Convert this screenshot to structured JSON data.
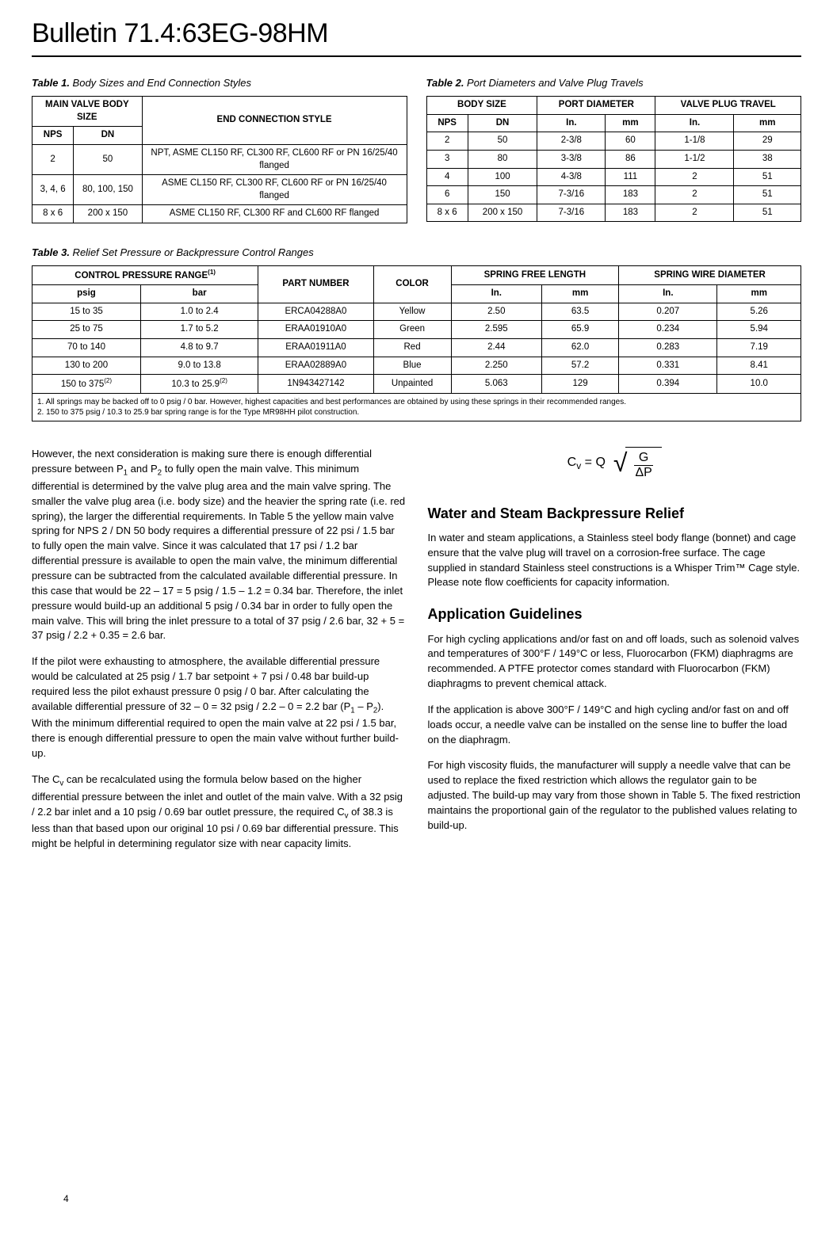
{
  "bulletin_title": "Bulletin 71.4:63EG-98HM",
  "table1": {
    "caption_label": "Table 1.",
    "caption_desc": " Body Sizes and End Connection Styles",
    "header_main": "MAIN VALVE BODY SIZE",
    "header_end": "END CONNECTION STYLE",
    "header_nps": "NPS",
    "header_dn": "DN",
    "rows": [
      {
        "nps": "2",
        "dn": "50",
        "end": "NPT, ASME CL150 RF, CL300 RF, CL600 RF or PN 16/25/40 flanged"
      },
      {
        "nps": "3, 4, 6",
        "dn": "80, 100, 150",
        "end": "ASME CL150 RF, CL300 RF, CL600 RF or PN 16/25/40 flanged"
      },
      {
        "nps": "8 x 6",
        "dn": "200 x 150",
        "end": "ASME CL150 RF, CL300 RF and CL600 RF flanged"
      }
    ]
  },
  "table2": {
    "caption_label": "Table 2.",
    "caption_desc": " Port Diameters and Valve Plug Travels",
    "header_body": "BODY SIZE",
    "header_port": "PORT DIAMETER",
    "header_travel": "VALVE PLUG TRAVEL",
    "header_nps": "NPS",
    "header_dn": "DN",
    "header_in": "In.",
    "header_mm": "mm",
    "rows": [
      {
        "nps": "2",
        "dn": "50",
        "pin": "2-3/8",
        "pmm": "60",
        "tin": "1-1/8",
        "tmm": "29"
      },
      {
        "nps": "3",
        "dn": "80",
        "pin": "3-3/8",
        "pmm": "86",
        "tin": "1-1/2",
        "tmm": "38"
      },
      {
        "nps": "4",
        "dn": "100",
        "pin": "4-3/8",
        "pmm": "111",
        "tin": "2",
        "tmm": "51"
      },
      {
        "nps": "6",
        "dn": "150",
        "pin": "7-3/16",
        "pmm": "183",
        "tin": "2",
        "tmm": "51"
      },
      {
        "nps": "8 x 6",
        "dn": "200 x 150",
        "pin": "7-3/16",
        "pmm": "183",
        "tin": "2",
        "tmm": "51"
      }
    ]
  },
  "table3": {
    "caption_label": "Table 3.",
    "caption_desc": " Relief Set Pressure or Backpressure Control Ranges",
    "header_control": "CONTROL PRESSURE RANGE",
    "header_part": "PART NUMBER",
    "header_color": "COLOR",
    "header_free": "SPRING FREE LENGTH",
    "header_wire": "SPRING WIRE DIAMETER",
    "header_psig": "psig",
    "header_bar": "bar",
    "header_in": "In.",
    "header_mm": "mm",
    "rows": [
      {
        "psig": "15 to 35",
        "bar": "1.0 to 2.4",
        "part": "ERCA04288A0",
        "color": "Yellow",
        "fin": "2.50",
        "fmm": "63.5",
        "win": "0.207",
        "wmm": "5.26"
      },
      {
        "psig": "25 to 75",
        "bar": "1.7 to 5.2",
        "part": "ERAA01910A0",
        "color": "Green",
        "fin": "2.595",
        "fmm": "65.9",
        "win": "0.234",
        "wmm": "5.94"
      },
      {
        "psig": "70 to 140",
        "bar": "4.8 to 9.7",
        "part": "ERAA01911A0",
        "color": "Red",
        "fin": "2.44",
        "fmm": "62.0",
        "win": "0.283",
        "wmm": "7.19"
      },
      {
        "psig": "130 to 200",
        "bar": "9.0 to 13.8",
        "part": "ERAA02889A0",
        "color": "Blue",
        "fin": "2.250",
        "fmm": "57.2",
        "win": "0.331",
        "wmm": "8.41"
      }
    ],
    "last_row": {
      "psig_pre": "150 to 375",
      "bar_pre": "10.3 to 25.9",
      "part": "1N943427142",
      "color": "Unpainted",
      "fin": "5.063",
      "fmm": "129",
      "win": "0.394",
      "wmm": "10.0"
    },
    "footnote1": "1. All springs may be backed off to 0 psig / 0 bar. However, highest capacities and best performances are obtained by using these springs in their recommended ranges.",
    "footnote2": "2. 150 to 375 psig / 10.3 to 25.9 bar spring range is for the Type MR98HH pilot construction."
  },
  "body": {
    "p1a": "However, the next consideration is making sure there is enough differential pressure between P",
    "p1b": " and P",
    "p1c": " to fully open the main valve. This minimum differential is determined by the valve plug area and the main valve spring. The smaller the valve plug area (i.e. body size) and the heavier the spring rate (i.e. red spring), the larger the differential requirements. In Table 5 the yellow main valve spring for NPS 2 / DN 50 body requires a differential pressure of 22 psi / 1.5 bar to fully open the main valve. Since it was calculated that 17 psi / 1.2 bar differential pressure is available to open the main valve, the minimum differential pressure can be subtracted from the calculated available differential pressure. In this case that would be 22 – 17 = 5 psig / 1.5 – 1.2 = 0.34 bar. Therefore, the inlet pressure would build-up an additional 5 psig / 0.34 bar in order to fully open the main valve. This will bring the inlet pressure to a total of 37 psig / 2.6 bar, 32 + 5 = 37 psig / 2.2 + 0.35 = 2.6 bar.",
    "p2a": "If the pilot were exhausting to atmosphere, the available differential pressure would be calculated at 25 psig / 1.7 bar setpoint + 7 psi / 0.48 bar build-up required less the pilot exhaust pressure 0 psig / 0 bar. After calculating the available differential pressure of 32 – 0 = 32 psig / 2.2 – 0 = 2.2 bar (P",
    "p2b": " – P",
    "p2c": "). With the minimum differential required to open the main valve at 22 psi / 1.5 bar, there is enough differential pressure to open the main valve without further build-up.",
    "p3a": "The C",
    "p3b": " can be recalculated using the formula below based on the higher differential pressure between the inlet and outlet of the main valve. With a 32 psig / 2.2 bar inlet and a 10 psig / 0.69 bar outlet pressure, the required C",
    "p3c": " of 38.3 is less than that based upon our original 10 psi / 0.69 bar differential pressure. This might be helpful in determining regulator size with near capacity limits.",
    "formula_lhs_pre": "C",
    "formula_lhs_post": " = Q",
    "formula_num": "G",
    "formula_den": "ΔP",
    "h_water": "Water and Steam Backpressure Relief",
    "p_water": "In water and steam applications, a Stainless steel body flange (bonnet) and cage ensure that the valve plug will travel on a corrosion-free surface. The cage supplied in standard Stainless steel constructions is a Whisper Trim™ Cage style. Please note flow coefficients for capacity information.",
    "h_app": "Application Guidelines",
    "p_app1": "For high cycling applications and/or fast on and off loads, such as solenoid valves and temperatures of 300°F / 149°C or less, Fluorocarbon (FKM) diaphragms are recommended. A PTFE protector comes standard with Fluorocarbon (FKM) diaphragms to prevent chemical attack.",
    "p_app2": "If the application is above 300°F / 149°C and high cycling and/or fast on and off loads occur, a needle valve can be installed on the sense line to buffer the load on the diaphragm.",
    "p_app3": "For high viscosity fluids, the manufacturer will supply a needle valve that can be used to replace the fixed restriction which allows the regulator gain to be adjusted. The build-up may vary from those shown in Table 5. The fixed restriction maintains the proportional gain of the regulator to the published values relating to build-up."
  },
  "page_number": "4"
}
